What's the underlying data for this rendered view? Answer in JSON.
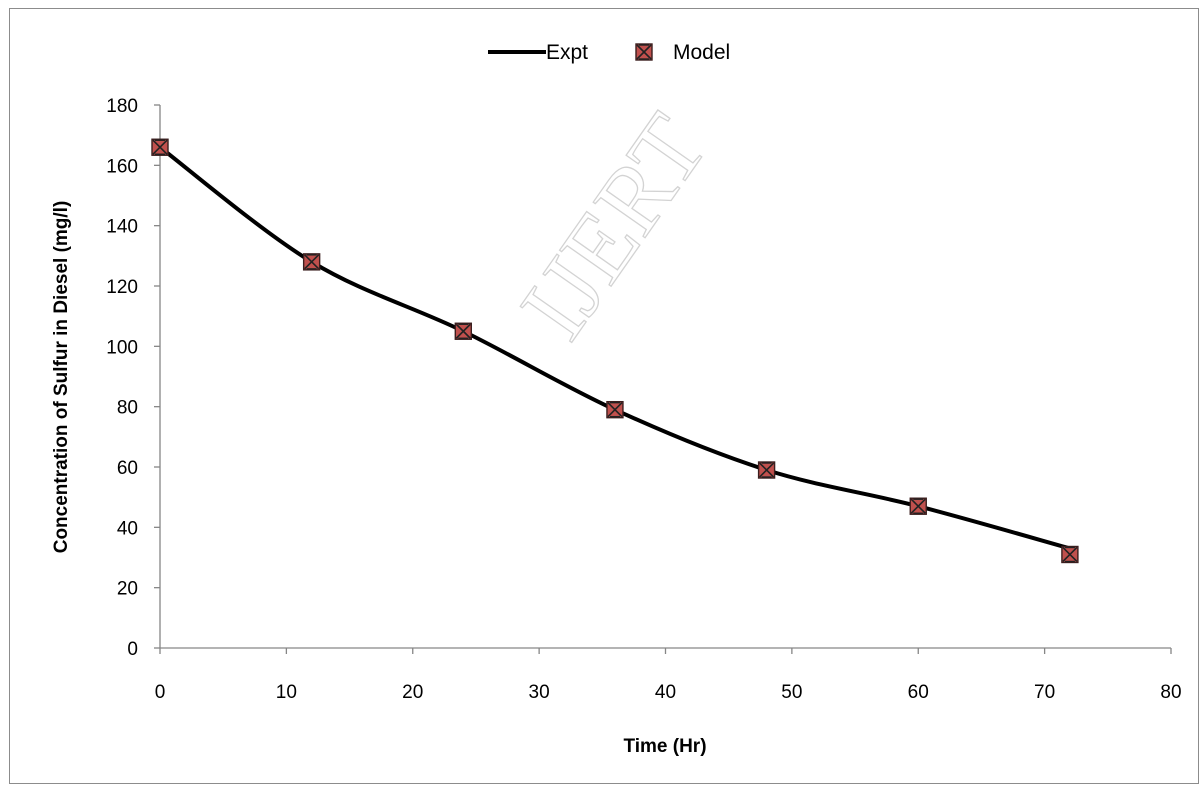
{
  "watermark": "IJERT",
  "chart_data": {
    "type": "line",
    "title": "",
    "xlabel": "Time (Hr)",
    "ylabel": "Concentration of Sulfur in Diesel (mg/l)",
    "xlim": [
      0,
      80
    ],
    "ylim": [
      0,
      180
    ],
    "xticks": [
      0,
      10,
      20,
      30,
      40,
      50,
      60,
      70,
      80
    ],
    "yticks": [
      0,
      20,
      40,
      60,
      80,
      100,
      120,
      140,
      160,
      180
    ],
    "grid": false,
    "legend_position": "top-center",
    "series": [
      {
        "name": "Expt",
        "style": "smooth-line",
        "color": "#000000",
        "x": [
          0,
          12,
          24,
          36,
          48,
          60,
          72
        ],
        "y": [
          166,
          128,
          105,
          79,
          59,
          47,
          33
        ]
      },
      {
        "name": "Model",
        "style": "markers",
        "marker_color": "#c0504d",
        "x": [
          0,
          12,
          24,
          36,
          48,
          60,
          72
        ],
        "y": [
          166,
          128,
          105,
          79,
          59,
          47,
          31
        ]
      }
    ]
  }
}
